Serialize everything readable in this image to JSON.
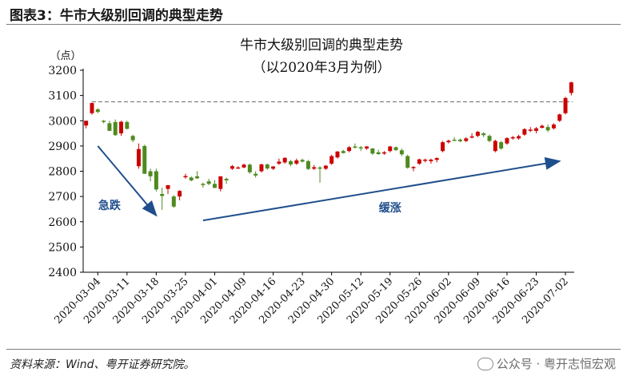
{
  "figure": {
    "title": "图表3：牛市大级别回调的典型走势",
    "source": "资料来源：Wind、粤开证券研究院。",
    "watermark": "公众号 · 粤开志恒宏观"
  },
  "colors": {
    "up": "#cc0000",
    "down": "#4e8a1e",
    "arrow": "#1f4e8c",
    "reference_line": "#7f7f7f"
  },
  "chart_data": {
    "type": "candlestick",
    "title": "牛市大级别回调的典型走势",
    "subtitle": "（以2020年3月为例）",
    "ylabel": "（点）",
    "ylim": [
      2400,
      3200
    ],
    "yticks": [
      2400,
      2500,
      2600,
      2700,
      2800,
      2900,
      3000,
      3100,
      3200
    ],
    "xtick_labels": [
      "2020-03-04",
      "2020-03-11",
      "2020-03-18",
      "2020-03-25",
      "2020-04-01",
      "2020-04-09",
      "2020-04-16",
      "2020-04-23",
      "2020-04-30",
      "2020-05-12",
      "2020-05-19",
      "2020-05-26",
      "2020-06-02",
      "2020-06-09",
      "2020-06-16",
      "2020-06-23",
      "2020-07-02"
    ],
    "reference_line": 3075,
    "annotations": [
      {
        "text": "急跌",
        "x": "2020-03-06",
        "y": 2650
      },
      {
        "text": "缓涨",
        "x": "2020-05-19",
        "y": 2640
      }
    ],
    "arrows": [
      {
        "from": [
          "2020-03-04",
          2900
        ],
        "to": [
          "2020-03-18",
          2625
        ]
      },
      {
        "from": [
          "2020-03-30",
          2605
        ],
        "to": [
          "2020-07-01",
          2840
        ]
      }
    ],
    "candles": [
      {
        "d": "03-02",
        "o": 2981,
        "h": 3000,
        "l": 2970,
        "c": 3000
      },
      {
        "d": "03-03",
        "o": 3030,
        "h": 3072,
        "l": 3024,
        "c": 3070
      },
      {
        "d": "03-04",
        "o": 3045,
        "h": 3050,
        "l": 3030,
        "c": 3035
      },
      {
        "d": "03-05",
        "o": 3000,
        "h": 3003,
        "l": 2990,
        "c": 2999
      },
      {
        "d": "03-06",
        "o": 2990,
        "h": 3000,
        "l": 2960,
        "c": 2960
      },
      {
        "d": "03-09",
        "o": 2995,
        "h": 3005,
        "l": 2940,
        "c": 2943
      },
      {
        "d": "03-10",
        "o": 2950,
        "h": 3000,
        "l": 2940,
        "c": 2996
      },
      {
        "d": "03-11",
        "o": 2995,
        "h": 3000,
        "l": 2965,
        "c": 2968
      },
      {
        "d": "03-12",
        "o": 2940,
        "h": 2945,
        "l": 2915,
        "c": 2923
      },
      {
        "d": "03-13",
        "o": 2820,
        "h": 2910,
        "l": 2810,
        "c": 2888
      },
      {
        "d": "03-16",
        "o": 2900,
        "h": 2905,
        "l": 2790,
        "c": 2790
      },
      {
        "d": "03-17",
        "o": 2800,
        "h": 2810,
        "l": 2760,
        "c": 2780
      },
      {
        "d": "03-18",
        "o": 2800,
        "h": 2810,
        "l": 2720,
        "c": 2728
      },
      {
        "d": "03-19",
        "o": 2710,
        "h": 2735,
        "l": 2647,
        "c": 2702
      },
      {
        "d": "03-20",
        "o": 2730,
        "h": 2740,
        "l": 2710,
        "c": 2745
      },
      {
        "d": "03-23",
        "o": 2700,
        "h": 2705,
        "l": 2655,
        "c": 2660
      },
      {
        "d": "03-24",
        "o": 2700,
        "h": 2725,
        "l": 2685,
        "c": 2722
      },
      {
        "d": "03-25",
        "o": 2780,
        "h": 2790,
        "l": 2770,
        "c": 2781
      },
      {
        "d": "03-26",
        "o": 2775,
        "h": 2780,
        "l": 2760,
        "c": 2764
      },
      {
        "d": "03-27",
        "o": 2780,
        "h": 2800,
        "l": 2770,
        "c": 2772
      },
      {
        "d": "03-30",
        "o": 2750,
        "h": 2755,
        "l": 2735,
        "c": 2747
      },
      {
        "d": "03-31",
        "o": 2760,
        "h": 2770,
        "l": 2745,
        "c": 2750
      },
      {
        "d": "04-01",
        "o": 2750,
        "h": 2765,
        "l": 2733,
        "c": 2734
      },
      {
        "d": "04-02",
        "o": 2730,
        "h": 2780,
        "l": 2720,
        "c": 2780
      },
      {
        "d": "04-03",
        "o": 2770,
        "h": 2775,
        "l": 2750,
        "c": 2764
      },
      {
        "d": "04-07",
        "o": 2810,
        "h": 2825,
        "l": 2805,
        "c": 2820
      },
      {
        "d": "04-08",
        "o": 2815,
        "h": 2820,
        "l": 2810,
        "c": 2815
      },
      {
        "d": "04-09",
        "o": 2815,
        "h": 2830,
        "l": 2812,
        "c": 2826
      },
      {
        "d": "04-10",
        "o": 2826,
        "h": 2830,
        "l": 2790,
        "c": 2796
      },
      {
        "d": "04-13",
        "o": 2790,
        "h": 2800,
        "l": 2775,
        "c": 2783
      },
      {
        "d": "04-14",
        "o": 2800,
        "h": 2830,
        "l": 2795,
        "c": 2827
      },
      {
        "d": "04-15",
        "o": 2827,
        "h": 2830,
        "l": 2805,
        "c": 2811
      },
      {
        "d": "04-16",
        "o": 2810,
        "h": 2820,
        "l": 2805,
        "c": 2819
      },
      {
        "d": "04-17",
        "o": 2830,
        "h": 2850,
        "l": 2825,
        "c": 2838
      },
      {
        "d": "04-20",
        "o": 2835,
        "h": 2855,
        "l": 2830,
        "c": 2853
      },
      {
        "d": "04-21",
        "o": 2840,
        "h": 2845,
        "l": 2820,
        "c": 2827
      },
      {
        "d": "04-22",
        "o": 2830,
        "h": 2850,
        "l": 2825,
        "c": 2843
      },
      {
        "d": "04-23",
        "o": 2845,
        "h": 2850,
        "l": 2835,
        "c": 2838
      },
      {
        "d": "04-24",
        "o": 2840,
        "h": 2845,
        "l": 2805,
        "c": 2809
      },
      {
        "d": "04-27",
        "o": 2810,
        "h": 2825,
        "l": 2805,
        "c": 2816
      },
      {
        "d": "04-28",
        "o": 2815,
        "h": 2820,
        "l": 2755,
        "c": 2810
      },
      {
        "d": "04-29",
        "o": 2810,
        "h": 2825,
        "l": 2805,
        "c": 2822
      },
      {
        "d": "04-30",
        "o": 2830,
        "h": 2865,
        "l": 2825,
        "c": 2860
      },
      {
        "d": "05-06",
        "o": 2855,
        "h": 2880,
        "l": 2850,
        "c": 2878
      },
      {
        "d": "05-07",
        "o": 2880,
        "h": 2885,
        "l": 2870,
        "c": 2872
      },
      {
        "d": "05-08",
        "o": 2880,
        "h": 2900,
        "l": 2875,
        "c": 2895
      },
      {
        "d": "05-11",
        "o": 2898,
        "h": 2910,
        "l": 2890,
        "c": 2894
      },
      {
        "d": "05-12",
        "o": 2895,
        "h": 2900,
        "l": 2880,
        "c": 2891
      },
      {
        "d": "05-13",
        "o": 2890,
        "h": 2900,
        "l": 2885,
        "c": 2898
      },
      {
        "d": "05-14",
        "o": 2890,
        "h": 2892,
        "l": 2865,
        "c": 2870
      },
      {
        "d": "05-15",
        "o": 2875,
        "h": 2885,
        "l": 2865,
        "c": 2868
      },
      {
        "d": "05-18",
        "o": 2870,
        "h": 2880,
        "l": 2865,
        "c": 2875
      },
      {
        "d": "05-19",
        "o": 2880,
        "h": 2900,
        "l": 2875,
        "c": 2898
      },
      {
        "d": "05-20",
        "o": 2895,
        "h": 2898,
        "l": 2880,
        "c": 2884
      },
      {
        "d": "05-21",
        "o": 2883,
        "h": 2890,
        "l": 2860,
        "c": 2867
      },
      {
        "d": "05-22",
        "o": 2860,
        "h": 2865,
        "l": 2810,
        "c": 2814
      },
      {
        "d": "05-25",
        "o": 2815,
        "h": 2820,
        "l": 2800,
        "c": 2817
      },
      {
        "d": "05-26",
        "o": 2830,
        "h": 2850,
        "l": 2825,
        "c": 2847
      },
      {
        "d": "05-27",
        "o": 2845,
        "h": 2850,
        "l": 2835,
        "c": 2846
      },
      {
        "d": "05-28",
        "o": 2840,
        "h": 2850,
        "l": 2830,
        "c": 2846
      },
      {
        "d": "05-29",
        "o": 2845,
        "h": 2855,
        "l": 2835,
        "c": 2852
      },
      {
        "d": "06-01",
        "o": 2880,
        "h": 2920,
        "l": 2875,
        "c": 2915
      },
      {
        "d": "06-02",
        "o": 2915,
        "h": 2925,
        "l": 2910,
        "c": 2921
      },
      {
        "d": "06-03",
        "o": 2925,
        "h": 2935,
        "l": 2920,
        "c": 2923
      },
      {
        "d": "06-04",
        "o": 2925,
        "h": 2930,
        "l": 2915,
        "c": 2919
      },
      {
        "d": "06-05",
        "o": 2920,
        "h": 2935,
        "l": 2915,
        "c": 2930
      },
      {
        "d": "06-08",
        "o": 2935,
        "h": 2950,
        "l": 2930,
        "c": 2938
      },
      {
        "d": "06-09",
        "o": 2940,
        "h": 2960,
        "l": 2935,
        "c": 2956
      },
      {
        "d": "06-10",
        "o": 2950,
        "h": 2955,
        "l": 2935,
        "c": 2943
      },
      {
        "d": "06-11",
        "o": 2940,
        "h": 2945,
        "l": 2915,
        "c": 2920
      },
      {
        "d": "06-12",
        "o": 2880,
        "h": 2925,
        "l": 2875,
        "c": 2920
      },
      {
        "d": "06-15",
        "o": 2915,
        "h": 2920,
        "l": 2885,
        "c": 2890
      },
      {
        "d": "06-16",
        "o": 2910,
        "h": 2935,
        "l": 2905,
        "c": 2931
      },
      {
        "d": "06-17",
        "o": 2930,
        "h": 2940,
        "l": 2925,
        "c": 2935
      },
      {
        "d": "06-18",
        "o": 2930,
        "h": 2945,
        "l": 2925,
        "c": 2939
      },
      {
        "d": "06-19",
        "o": 2945,
        "h": 2970,
        "l": 2940,
        "c": 2967
      },
      {
        "d": "06-22",
        "o": 2965,
        "h": 2975,
        "l": 2955,
        "c": 2965
      },
      {
        "d": "06-23",
        "o": 2960,
        "h": 2975,
        "l": 2950,
        "c": 2970
      },
      {
        "d": "06-24",
        "o": 2972,
        "h": 2985,
        "l": 2970,
        "c": 2980
      },
      {
        "d": "06-29",
        "o": 2975,
        "h": 2985,
        "l": 2955,
        "c": 2962
      },
      {
        "d": "06-30",
        "o": 2970,
        "h": 2990,
        "l": 2965,
        "c": 2985
      },
      {
        "d": "07-01",
        "o": 3000,
        "h": 3028,
        "l": 2995,
        "c": 3025
      },
      {
        "d": "07-02",
        "o": 3030,
        "h": 3095,
        "l": 3025,
        "c": 3090
      },
      {
        "d": "07-03",
        "o": 3110,
        "h": 3155,
        "l": 3100,
        "c": 3152
      }
    ]
  }
}
